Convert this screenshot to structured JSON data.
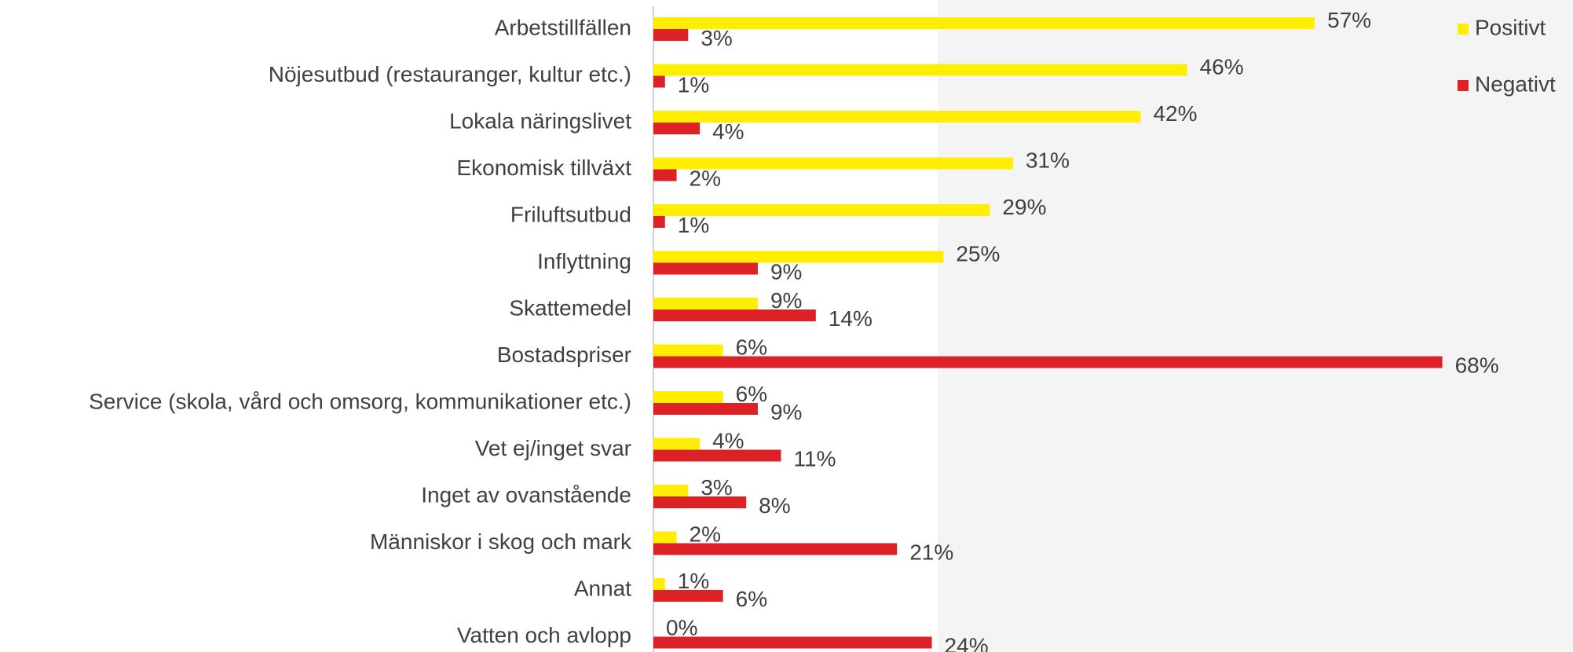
{
  "chart_data": {
    "type": "barh",
    "categories": [
      "Arbetstillfällen",
      "Nöjesutbud (restauranger, kultur etc.)",
      "Lokala näringslivet",
      "Ekonomisk tillväxt",
      "Friluftsutbud",
      "Inflyttning",
      "Skattemedel",
      "Bostadspriser",
      "Service (skola, vård och omsorg, kommunikationer etc.)",
      "Vet ej/inget svar",
      "Inget av ovanstående",
      "Människor i skog och mark",
      "Annat",
      "Vatten och avlopp"
    ],
    "series": [
      {
        "name": "Positivt",
        "color": "#ffee00",
        "values": [
          57,
          46,
          42,
          31,
          29,
          25,
          9,
          6,
          6,
          4,
          3,
          2,
          1,
          0
        ],
        "value_labels": [
          "57%",
          "46%",
          "42%",
          "31%",
          "29%",
          "25%",
          "9%",
          "6%",
          "6%",
          "4%",
          "3%",
          "2%",
          "1%",
          "0%"
        ]
      },
      {
        "name": "Negativt",
        "color": "#dc2127",
        "values": [
          3,
          1,
          4,
          2,
          1,
          9,
          14,
          68,
          9,
          11,
          8,
          21,
          6,
          24
        ],
        "value_labels": [
          "3%",
          "1%",
          "4%",
          "2%",
          "1%",
          "9%",
          "14%",
          "68%",
          "9%",
          "11%",
          "8%",
          "21%",
          "6%",
          "24%"
        ]
      }
    ],
    "xlim": [
      0,
      75
    ],
    "legend": "upper right"
  }
}
